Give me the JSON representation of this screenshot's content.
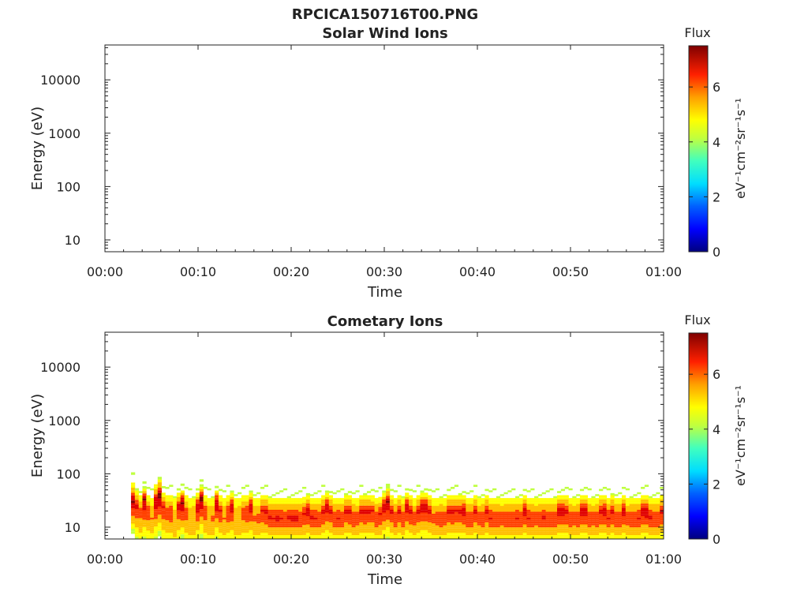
{
  "figure_title": "RPCICA150716T00.PNG",
  "colormap": [
    "#00007f",
    "#0000ff",
    "#00bfff",
    "#40ffbf",
    "#bfff40",
    "#ffff00",
    "#ffbf00",
    "#ff4000",
    "#e00000",
    "#7f0000"
  ],
  "colorbar": {
    "title": "Flux",
    "unit_label": "eV⁻¹cm⁻²sr⁻¹s⁻¹",
    "range": [
      0,
      7.5
    ],
    "ticks": [
      "0",
      "2",
      "4",
      "6"
    ]
  },
  "chart_data": [
    {
      "type": "heatmap",
      "title": "Solar Wind Ions",
      "xlabel": "Time",
      "ylabel": "Energy (eV)",
      "x_ticks": [
        "00:00",
        "00:10",
        "00:20",
        "00:30",
        "00:40",
        "00:50",
        "01:00"
      ],
      "x_range_minutes": [
        0,
        60
      ],
      "y_ticks": [
        "10",
        "100",
        "1000",
        "10000"
      ],
      "y_scale": "log",
      "y_range_eV": [
        6,
        45000
      ],
      "data": []
    },
    {
      "type": "heatmap",
      "title": "Cometary Ions",
      "xlabel": "Time",
      "ylabel": "Energy (eV)",
      "x_ticks": [
        "00:00",
        "00:10",
        "00:20",
        "00:30",
        "00:40",
        "00:50",
        "01:00"
      ],
      "x_range_minutes": [
        0,
        60
      ],
      "y_ticks": [
        "10",
        "100",
        "1000",
        "10000"
      ],
      "y_scale": "log",
      "y_range_eV": [
        6,
        45000
      ],
      "data_start_minute": 2.8,
      "peak_energy_eV": [
        30,
        25,
        20,
        35,
        20,
        15,
        30,
        40,
        25,
        20,
        20,
        15,
        25,
        30,
        20,
        15,
        15,
        25,
        35,
        20,
        15,
        15,
        30,
        20,
        15,
        20,
        25,
        15,
        15,
        20,
        20,
        25,
        15,
        15,
        20,
        20,
        15,
        15,
        15,
        15,
        15,
        15,
        15,
        15,
        15,
        18,
        20,
        15,
        15,
        15,
        20,
        25,
        20,
        15,
        15,
        15,
        20,
        20,
        15,
        15,
        20,
        20,
        20,
        20,
        15,
        18,
        25,
        30,
        20,
        15,
        20,
        15,
        25,
        20,
        15,
        20,
        25,
        25,
        20,
        15,
        15,
        15,
        15,
        20,
        20,
        20,
        20,
        20,
        15,
        15,
        20,
        15,
        15,
        20,
        15,
        15,
        15,
        15,
        15,
        15,
        15,
        15,
        15,
        20,
        15,
        15,
        15,
        15,
        15,
        15,
        15,
        15,
        20,
        20,
        20,
        15,
        15,
        15,
        20,
        20,
        15,
        15,
        15,
        20,
        20,
        15,
        20,
        15,
        15,
        20,
        15,
        15,
        15,
        15,
        20,
        20,
        15,
        15,
        15,
        20
      ],
      "upper_edge_eV": [
        60,
        45,
        35,
        50,
        35,
        30,
        55,
        70,
        40,
        35,
        35,
        30,
        40,
        45,
        35,
        30,
        30,
        40,
        55,
        35,
        30,
        30,
        45,
        35,
        30,
        35,
        40,
        30,
        30,
        35,
        35,
        40,
        30,
        30,
        35,
        35,
        30,
        30,
        30,
        30,
        30,
        30,
        30,
        30,
        30,
        32,
        35,
        30,
        30,
        30,
        35,
        40,
        35,
        30,
        30,
        30,
        35,
        35,
        30,
        30,
        35,
        35,
        35,
        35,
        30,
        32,
        40,
        50,
        35,
        30,
        35,
        30,
        40,
        35,
        30,
        35,
        40,
        40,
        35,
        30,
        30,
        30,
        30,
        35,
        35,
        35,
        35,
        35,
        30,
        30,
        35,
        30,
        30,
        35,
        30,
        30,
        30,
        30,
        30,
        30,
        30,
        30,
        30,
        35,
        30,
        30,
        30,
        30,
        30,
        30,
        30,
        30,
        35,
        35,
        35,
        30,
        30,
        30,
        35,
        35,
        30,
        30,
        30,
        35,
        35,
        30,
        35,
        30,
        30,
        35,
        30,
        30,
        30,
        30,
        35,
        35,
        30,
        30,
        30,
        35
      ],
      "lower_edge_eV": [
        12,
        10,
        8,
        10,
        9,
        8,
        10,
        12,
        9,
        8,
        8,
        7,
        9,
        10,
        8,
        7,
        7,
        9,
        11,
        8,
        7,
        7,
        10,
        8,
        7,
        8,
        9,
        7,
        7,
        8,
        8,
        9,
        7,
        7,
        8,
        8,
        7,
        7,
        7,
        7,
        7,
        7,
        7,
        7,
        7,
        7.5,
        8,
        7,
        7,
        7,
        8,
        9,
        8,
        7,
        7,
        7,
        8,
        8,
        7,
        7,
        8,
        8,
        8,
        8,
        7,
        7.5,
        9,
        10,
        8,
        7,
        8,
        7,
        9,
        8,
        7,
        8,
        9,
        9,
        8,
        7,
        7,
        7,
        7,
        8,
        8,
        8,
        8,
        8,
        7,
        7,
        8,
        7,
        7,
        8,
        7,
        7,
        7,
        7,
        7,
        7,
        7,
        7,
        7,
        8,
        7,
        7,
        7,
        7,
        7,
        7,
        7,
        7,
        8,
        8,
        8,
        7,
        7,
        7,
        8,
        8,
        7,
        7,
        7,
        8,
        8,
        7,
        8,
        7,
        7,
        8,
        7,
        7,
        7,
        7,
        8,
        8,
        7,
        7,
        7,
        8
      ],
      "peak_flux": [
        7.2,
        6.5,
        5.8,
        7.4,
        6.2,
        5.5,
        7.0,
        7.5,
        6.4,
        6.0,
        6.2,
        5.0,
        6.6,
        7.3,
        6.0,
        5.2,
        5.4,
        6.8,
        7.4,
        6.1,
        5.4,
        5.6,
        7.1,
        6.3,
        5.5,
        6.2,
        6.9,
        5.3,
        5.4,
        6.0,
        6.2,
        6.8,
        5.6,
        5.8,
        6.4,
        6.6,
        6.5,
        6.4,
        6.6,
        6.4,
        6.3,
        6.5,
        6.6,
        6.6,
        6.3,
        6.4,
        6.7,
        6.5,
        6.4,
        6.2,
        6.6,
        6.9,
        6.5,
        6.2,
        6.4,
        6.3,
        6.5,
        6.6,
        6.2,
        6.1,
        6.5,
        6.6,
        6.5,
        6.3,
        6.2,
        6.4,
        6.8,
        7.1,
        6.5,
        6.2,
        6.5,
        6.3,
        6.9,
        6.6,
        6.1,
        6.5,
        6.9,
        6.8,
        6.5,
        5.9,
        6.0,
        6.2,
        6.1,
        6.5,
        6.6,
        6.4,
        6.5,
        6.7,
        6.3,
        6.2,
        6.5,
        6.1,
        6.2,
        6.5,
        6.4,
        6.3,
        6.2,
        6.1,
        6.3,
        6.2,
        6.3,
        6.4,
        6.3,
        6.7,
        6.4,
        6.3,
        6.1,
        6.3,
        6.5,
        6.2,
        6.3,
        6.2,
        6.8,
        6.9,
        6.6,
        6.2,
        6.1,
        6.3,
        6.7,
        6.8,
        6.2,
        6.1,
        6.2,
        6.6,
        6.8,
        6.4,
        6.6,
        6.3,
        6.2,
        6.7,
        6.1,
        6.2,
        6.3,
        6.4,
        6.9,
        7.0,
        6.5,
        6.3,
        6.2,
        6.6
      ]
    }
  ]
}
